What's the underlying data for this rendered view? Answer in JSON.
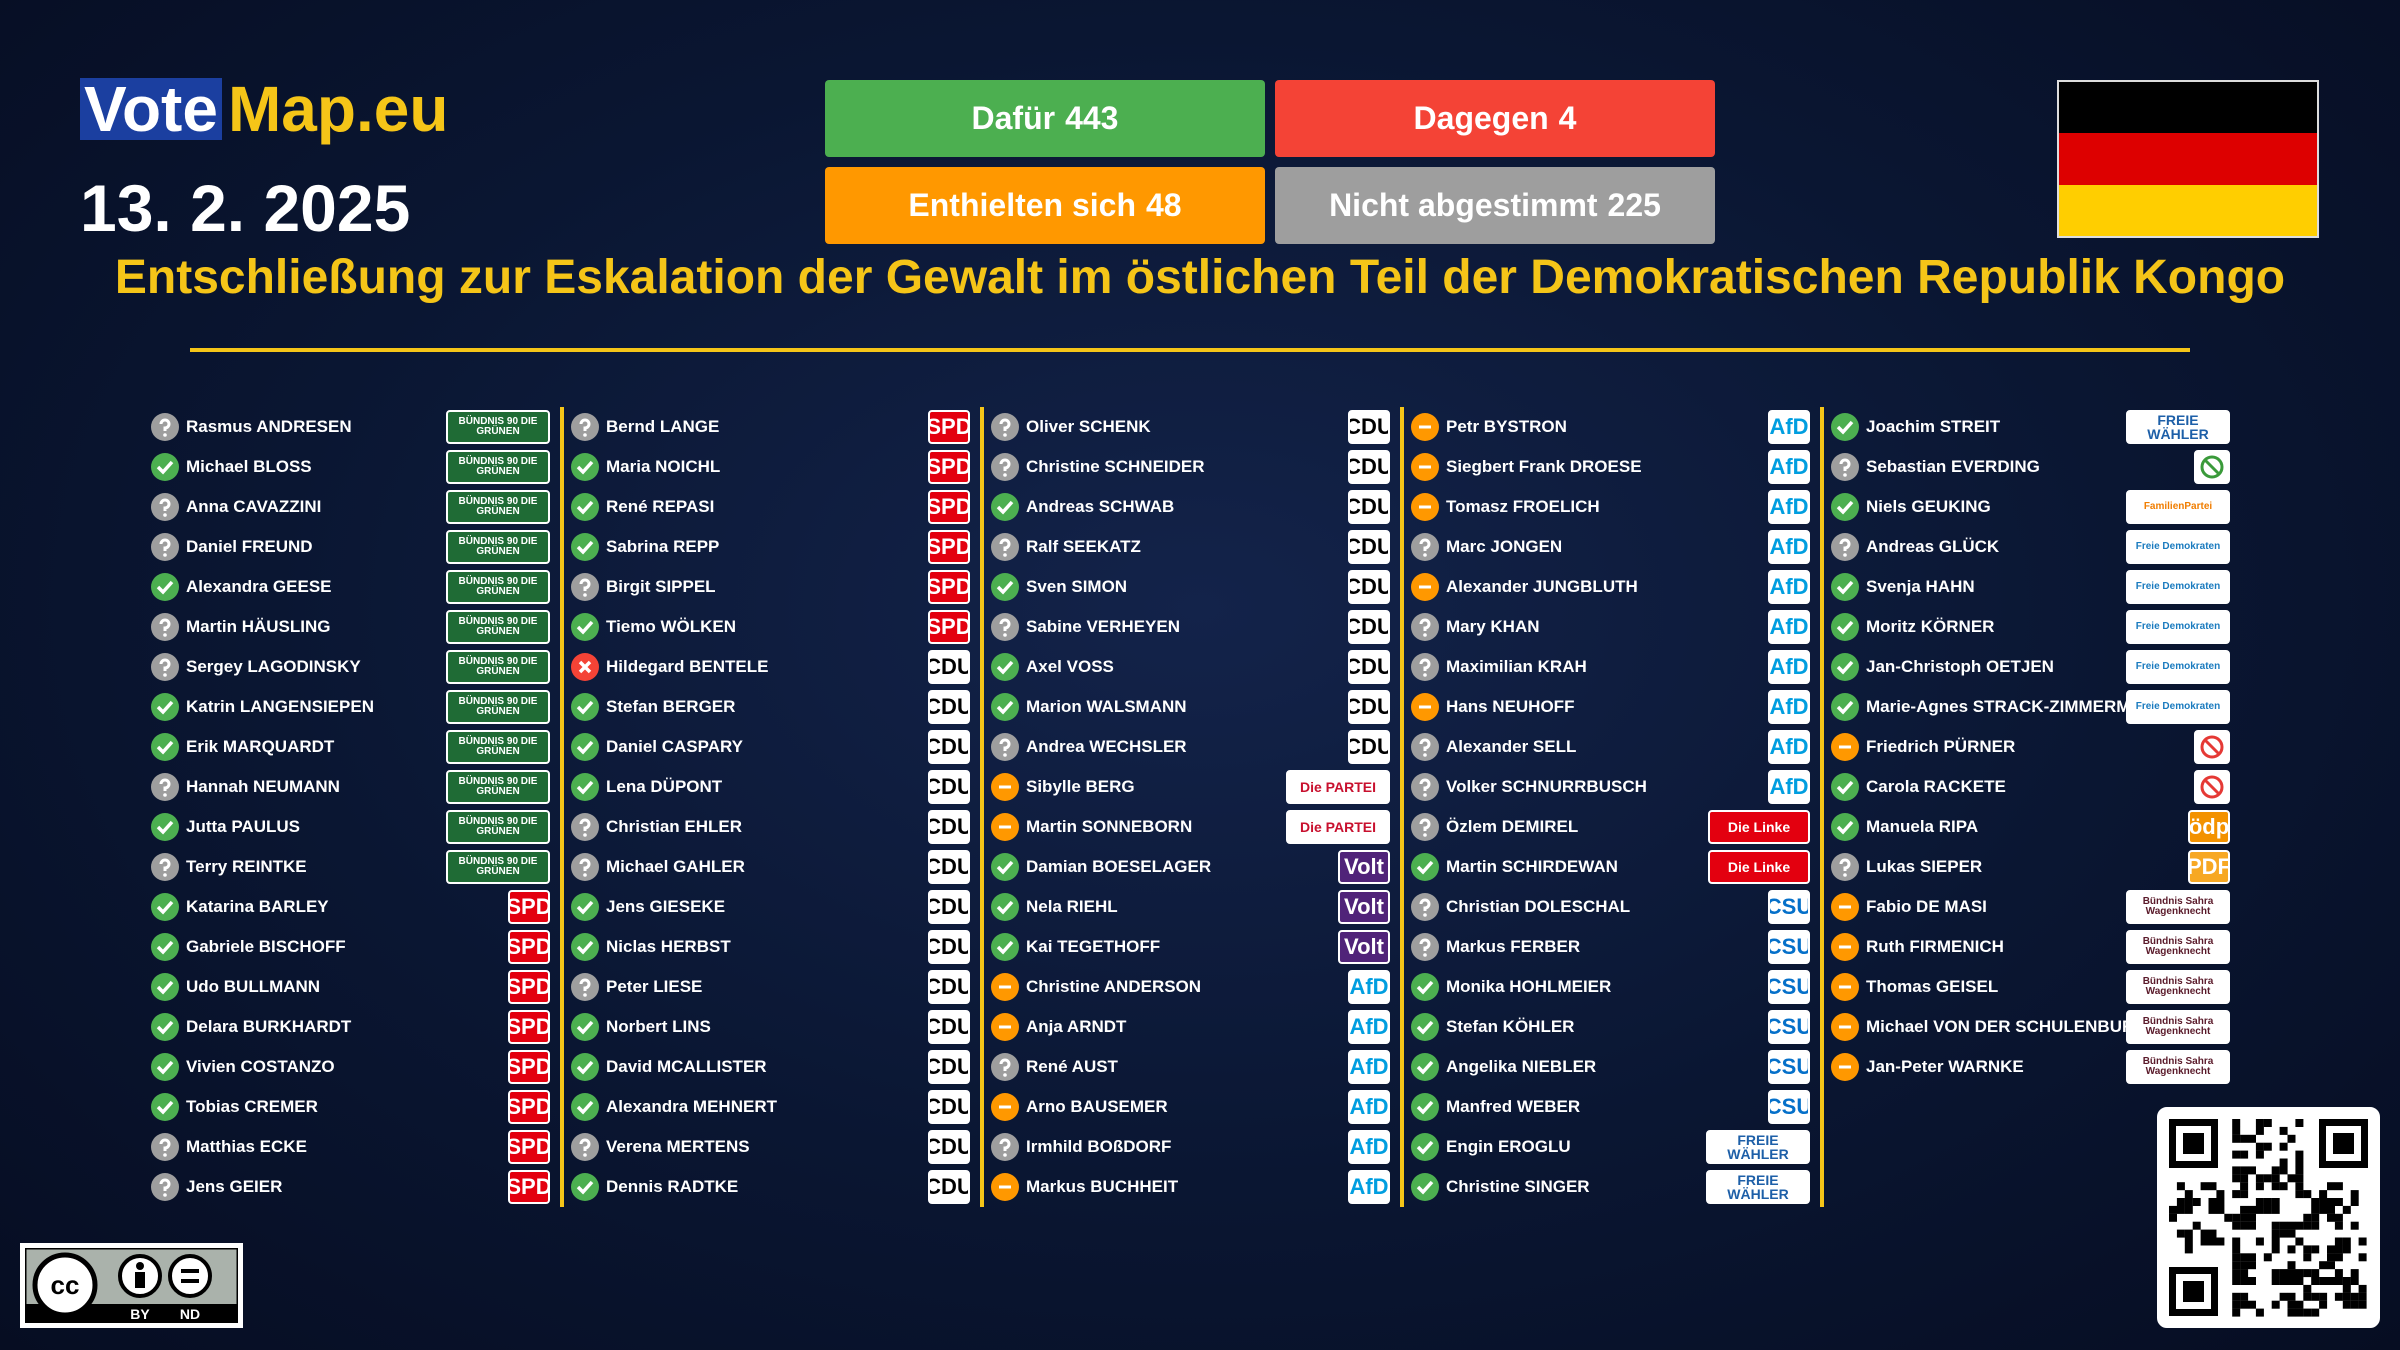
{
  "header": {
    "logo_left": "Vote",
    "logo_right": "Map.eu",
    "date": "13. 2. 2025"
  },
  "results": [
    {
      "label": "Dafür",
      "count": 443,
      "color": "#4caf50"
    },
    {
      "label": "Dagegen",
      "count": 4,
      "color": "#f44336"
    },
    {
      "label": "Enthielten sich",
      "count": 48,
      "color": "#ff9800"
    },
    {
      "label": "Nicht abgestimmt",
      "count": 225,
      "color": "#9e9e9e"
    }
  ],
  "title": "Entschließung zur Eskalation der Gewalt im östlichen Teil der Demokratischen Republik Kongo",
  "columns": [
    [
      {
        "logo": "BÜNDNIS 90 DIE GRÜNEN",
        "fg": "#ffffff",
        "bg": "#1f6b35",
        "members": [
          {
            "name": "Rasmus ANDRESEN",
            "vote": "absent"
          },
          {
            "name": "Michael BLOSS",
            "vote": "yes"
          },
          {
            "name": "Anna CAVAZZINI",
            "vote": "absent"
          },
          {
            "name": "Daniel FREUND",
            "vote": "absent"
          },
          {
            "name": "Alexandra GEESE",
            "vote": "yes"
          },
          {
            "name": "Martin HÄUSLING",
            "vote": "absent"
          },
          {
            "name": "Sergey LAGODINSKY",
            "vote": "absent"
          },
          {
            "name": "Katrin LANGENSIEPEN",
            "vote": "yes"
          },
          {
            "name": "Erik MARQUARDT",
            "vote": "yes"
          },
          {
            "name": "Hannah NEUMANN",
            "vote": "absent"
          },
          {
            "name": "Jutta PAULUS",
            "vote": "yes"
          },
          {
            "name": "Terry REINTKE",
            "vote": "absent"
          }
        ]
      },
      {
        "logo": "SPD",
        "fg": "#ffffff",
        "bg": "#e3000f",
        "members": [
          {
            "name": "Katarina BARLEY",
            "vote": "yes"
          },
          {
            "name": "Gabriele BISCHOFF",
            "vote": "yes"
          },
          {
            "name": "Udo BULLMANN",
            "vote": "yes"
          },
          {
            "name": "Delara BURKHARDT",
            "vote": "yes"
          },
          {
            "name": "Vivien COSTANZO",
            "vote": "yes"
          },
          {
            "name": "Tobias CREMER",
            "vote": "yes"
          },
          {
            "name": "Matthias ECKE",
            "vote": "absent"
          },
          {
            "name": "Jens GEIER",
            "vote": "absent"
          }
        ]
      }
    ],
    [
      {
        "logo": "SPD",
        "fg": "#ffffff",
        "bg": "#e3000f",
        "members": [
          {
            "name": "Bernd LANGE",
            "vote": "absent"
          },
          {
            "name": "Maria NOICHL",
            "vote": "yes"
          },
          {
            "name": "René REPASI",
            "vote": "yes"
          },
          {
            "name": "Sabrina REPP",
            "vote": "yes"
          },
          {
            "name": "Birgit SIPPEL",
            "vote": "absent"
          },
          {
            "name": "Tiemo WÖLKEN",
            "vote": "yes"
          }
        ]
      },
      {
        "logo": "CDU",
        "fg": "#000000",
        "bg": "#ffffff",
        "members": [
          {
            "name": "Hildegard BENTELE",
            "vote": "no"
          },
          {
            "name": "Stefan BERGER",
            "vote": "yes"
          },
          {
            "name": "Daniel CASPARY",
            "vote": "yes"
          },
          {
            "name": "Lena DÜPONT",
            "vote": "yes"
          },
          {
            "name": "Christian EHLER",
            "vote": "absent"
          },
          {
            "name": "Michael GAHLER",
            "vote": "absent"
          },
          {
            "name": "Jens GIESEKE",
            "vote": "yes"
          },
          {
            "name": "Niclas HERBST",
            "vote": "yes"
          },
          {
            "name": "Peter LIESE",
            "vote": "absent"
          },
          {
            "name": "Norbert LINS",
            "vote": "yes"
          },
          {
            "name": "David MCALLISTER",
            "vote": "yes"
          },
          {
            "name": "Alexandra MEHNERT",
            "vote": "yes"
          },
          {
            "name": "Verena MERTENS",
            "vote": "absent"
          },
          {
            "name": "Dennis RADTKE",
            "vote": "yes"
          }
        ]
      }
    ],
    [
      {
        "logo": "CDU",
        "fg": "#000000",
        "bg": "#ffffff",
        "members": [
          {
            "name": "Oliver SCHENK",
            "vote": "absent"
          },
          {
            "name": "Christine SCHNEIDER",
            "vote": "absent"
          },
          {
            "name": "Andreas SCHWAB",
            "vote": "yes"
          },
          {
            "name": "Ralf SEEKATZ",
            "vote": "absent"
          },
          {
            "name": "Sven SIMON",
            "vote": "yes"
          },
          {
            "name": "Sabine VERHEYEN",
            "vote": "absent"
          },
          {
            "name": "Axel VOSS",
            "vote": "yes"
          },
          {
            "name": "Marion WALSMANN",
            "vote": "yes"
          },
          {
            "name": "Andrea WECHSLER",
            "vote": "absent"
          }
        ]
      },
      {
        "logo": "Die PARTEI",
        "fg": "#c8102e",
        "bg": "#ffffff",
        "members": [
          {
            "name": "Sibylle BERG",
            "vote": "abstain"
          },
          {
            "name": "Martin SONNEBORN",
            "vote": "abstain"
          }
        ]
      },
      {
        "logo": "Volt",
        "fg": "#ffffff",
        "bg": "#502379",
        "members": [
          {
            "name": "Damian BOESELAGER",
            "vote": "yes"
          },
          {
            "name": "Nela RIEHL",
            "vote": "yes"
          },
          {
            "name": "Kai TEGETHOFF",
            "vote": "yes"
          }
        ]
      },
      {
        "logo": "AfD",
        "fg": "#009ee0",
        "bg": "#ffffff",
        "members": [
          {
            "name": "Christine ANDERSON",
            "vote": "abstain"
          },
          {
            "name": "Anja ARNDT",
            "vote": "abstain"
          },
          {
            "name": "René AUST",
            "vote": "absent"
          },
          {
            "name": "Arno BAUSEMER",
            "vote": "abstain"
          },
          {
            "name": "Irmhild BOßDORF",
            "vote": "absent"
          },
          {
            "name": "Markus BUCHHEIT",
            "vote": "abstain"
          }
        ]
      }
    ],
    [
      {
        "logo": "AfD",
        "fg": "#009ee0",
        "bg": "#ffffff",
        "members": [
          {
            "name": "Petr BYSTRON",
            "vote": "abstain"
          },
          {
            "name": "Siegbert Frank DROESE",
            "vote": "abstain"
          },
          {
            "name": "Tomasz FROELICH",
            "vote": "abstain"
          },
          {
            "name": "Marc JONGEN",
            "vote": "absent"
          },
          {
            "name": "Alexander JUNGBLUTH",
            "vote": "abstain"
          },
          {
            "name": "Mary KHAN",
            "vote": "absent"
          },
          {
            "name": "Maximilian KRAH",
            "vote": "absent"
          },
          {
            "name": "Hans NEUHOFF",
            "vote": "abstain"
          },
          {
            "name": "Alexander SELL",
            "vote": "absent"
          },
          {
            "name": "Volker SCHNURRBUSCH",
            "vote": "absent"
          }
        ]
      },
      {
        "logo": "Die Linke",
        "fg": "#ffffff",
        "bg": "#e3000f",
        "members": [
          {
            "name": "Özlem DEMIREL",
            "vote": "absent"
          },
          {
            "name": "Martin SCHIRDEWAN",
            "vote": "yes"
          }
        ]
      },
      {
        "logo": "CSU",
        "fg": "#0570c9",
        "bg": "#ffffff",
        "members": [
          {
            "name": "Christian DOLESCHAL",
            "vote": "absent"
          },
          {
            "name": "Markus FERBER",
            "vote": "absent"
          },
          {
            "name": "Monika HOHLMEIER",
            "vote": "yes"
          },
          {
            "name": "Stefan KÖHLER",
            "vote": "yes"
          },
          {
            "name": "Angelika NIEBLER",
            "vote": "yes"
          },
          {
            "name": "Manfred WEBER",
            "vote": "yes"
          }
        ]
      },
      {
        "logo": "FREIE WÄHLER",
        "fg": "#1d5fa8",
        "bg": "#ffffff",
        "members": [
          {
            "name": "Engin EROGLU",
            "vote": "yes"
          },
          {
            "name": "Christine SINGER",
            "vote": "yes"
          }
        ]
      }
    ],
    [
      {
        "logo": "FREIE WÄHLER",
        "fg": "#1d5fa8",
        "bg": "#ffffff",
        "members": [
          {
            "name": "Joachim STREIT",
            "vote": "yes"
          }
        ]
      },
      {
        "logo": null,
        "fg": "#3a9a3a",
        "bg": "#ffffff",
        "members": [
          {
            "name": "Sebastian EVERDING",
            "vote": "absent"
          }
        ]
      },
      {
        "logo": "FamilienPartei",
        "fg": "#f07d00",
        "bg": "#ffffff",
        "members": [
          {
            "name": "Niels GEUKING",
            "vote": "yes"
          }
        ]
      },
      {
        "logo": "Freie Demokraten",
        "fg": "#1a7bbf",
        "bg": "#ffffff",
        "members": [
          {
            "name": "Andreas GLÜCK",
            "vote": "absent"
          },
          {
            "name": "Svenja HAHN",
            "vote": "yes"
          },
          {
            "name": "Moritz KÖRNER",
            "vote": "yes"
          },
          {
            "name": "Jan-Christoph OETJEN",
            "vote": "yes"
          },
          {
            "name": "Marie-Agnes STRACK-ZIMMERMANN",
            "vote": "yes"
          }
        ]
      },
      {
        "logo": null,
        "fg": "#e53935",
        "bg": "#ffffff",
        "members": [
          {
            "name": "Friedrich PÜRNER",
            "vote": "abstain"
          },
          {
            "name": "Carola RACKETE",
            "vote": "yes"
          }
        ]
      },
      {
        "logo": "ödp",
        "fg": "#ffffff",
        "bg": "#f39200",
        "members": [
          {
            "name": "Manuela RIPA",
            "vote": "yes"
          }
        ]
      },
      {
        "logo": "PDF",
        "fg": "#ffffff",
        "bg": "#f7a823",
        "members": [
          {
            "name": "Lukas SIEPER",
            "vote": "absent"
          }
        ]
      },
      {
        "logo": "Bündnis Sahra Wagenknecht",
        "fg": "#5a1a2a",
        "bg": "#ffffff",
        "members": [
          {
            "name": "Fabio DE MASI",
            "vote": "abstain"
          },
          {
            "name": "Ruth FIRMENICH",
            "vote": "abstain"
          },
          {
            "name": "Thomas GEISEL",
            "vote": "abstain"
          },
          {
            "name": "Michael VON DER SCHULENBURG",
            "vote": "abstain"
          },
          {
            "name": "Jan-Peter WARNKE",
            "vote": "abstain"
          }
        ]
      }
    ]
  ],
  "license": [
    "BY",
    "ND"
  ]
}
